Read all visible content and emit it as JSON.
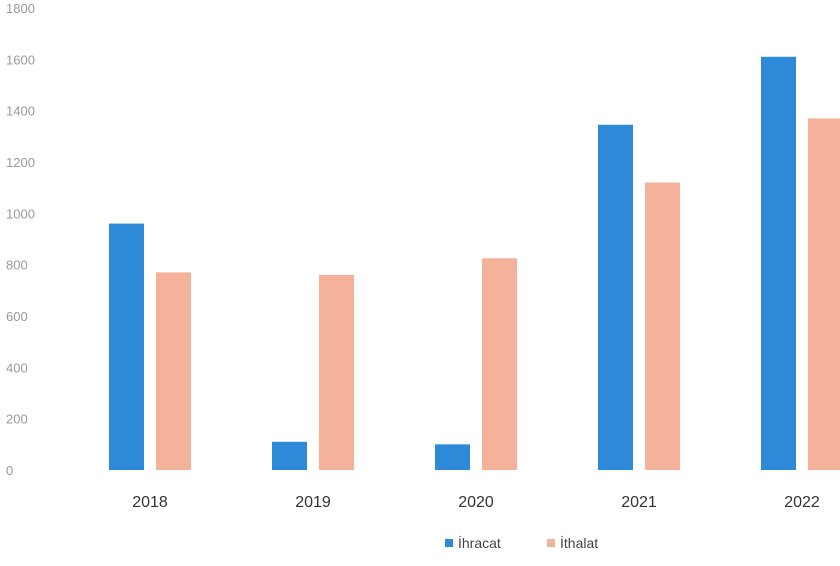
{
  "chart_data": {
    "type": "bar",
    "title": "",
    "xlabel": "",
    "ylabel": "",
    "categories": [
      "2018",
      "2019",
      "2020",
      "2021",
      "2022"
    ],
    "series": [
      {
        "name": "İhracat",
        "color": "#2e8ad8",
        "values": [
          960,
          110,
          100,
          1345,
          1610
        ]
      },
      {
        "name": "İthalat",
        "color": "#f4b29a",
        "values": [
          770,
          760,
          825,
          1120,
          1370
        ]
      }
    ],
    "ylim": [
      0,
      1800
    ],
    "yticks": [
      "0",
      "200",
      "400",
      "600",
      "800",
      "1000",
      "1200",
      "1400",
      "1600",
      "1800"
    ],
    "grid": false,
    "legend_position": "bottom-right"
  }
}
